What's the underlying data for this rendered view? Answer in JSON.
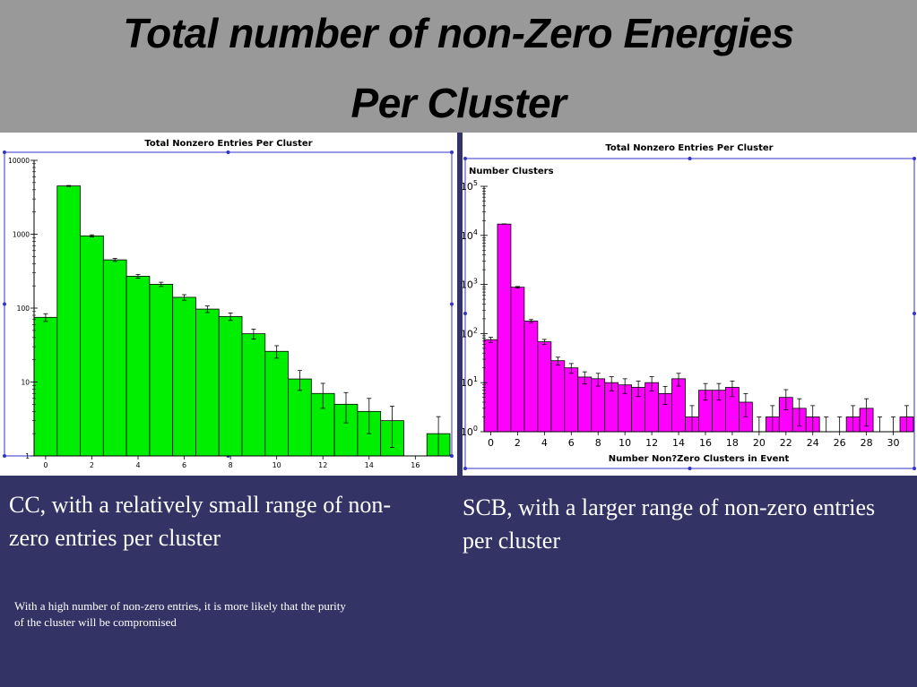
{
  "slide": {
    "title_line1": "Total number of non-Zero Energies",
    "title_line2": "Per Cluster",
    "caption_cc": "CC, with a relatively small range of non-zero entries per cluster",
    "caption_scb": "SCB, with a larger range of non-zero entries per cluster",
    "note": "With a high number of non-zero entries, it is more likely that the purity of the cluster will be compromised",
    "colors": {
      "background": "#333366",
      "title_band": "#999999",
      "cc_bars": "#00ee00",
      "scb_bars": "#ff00ff",
      "frame": "#3333cc"
    }
  },
  "chart_data": [
    {
      "type": "bar",
      "title": "Total Nonzero Entries Per Cluster",
      "ylabel": "",
      "xlabel": "",
      "yscale": "log",
      "ylim": [
        1,
        10000
      ],
      "xlim": [
        -0.5,
        17.5
      ],
      "bin_width": 1,
      "x_ticks": [
        "0",
        "2",
        "4",
        "6",
        "8",
        "10",
        "12",
        "14",
        "16"
      ],
      "x_tick_values": [
        0,
        2,
        4,
        6,
        8,
        10,
        12,
        14,
        16
      ],
      "y_ticks": [
        "1",
        "10",
        "100",
        "1000",
        "10000"
      ],
      "y_tick_values": [
        1,
        10,
        100,
        1000,
        10000
      ],
      "bars": [
        {
          "x": 0,
          "value": 75,
          "err": 9
        },
        {
          "x": 1,
          "value": 4500,
          "err": 67
        },
        {
          "x": 2,
          "value": 950,
          "err": 31
        },
        {
          "x": 3,
          "value": 450,
          "err": 21
        },
        {
          "x": 4,
          "value": 270,
          "err": 16
        },
        {
          "x": 5,
          "value": 210,
          "err": 14
        },
        {
          "x": 6,
          "value": 140,
          "err": 12
        },
        {
          "x": 7,
          "value": 97,
          "err": 10
        },
        {
          "x": 8,
          "value": 77,
          "err": 9
        },
        {
          "x": 9,
          "value": 45,
          "err": 7
        },
        {
          "x": 10,
          "value": 26,
          "err": 5
        },
        {
          "x": 11,
          "value": 11,
          "err": 3.3
        },
        {
          "x": 12,
          "value": 7,
          "err": 2.6
        },
        {
          "x": 13,
          "value": 5,
          "err": 2.2
        },
        {
          "x": 14,
          "value": 4,
          "err": 2
        },
        {
          "x": 15,
          "value": 3,
          "err": 1.7
        },
        {
          "x": 16,
          "value": 0,
          "err": 0
        },
        {
          "x": 17,
          "value": 2,
          "err": 1.4
        }
      ]
    },
    {
      "type": "bar",
      "title": "Total Nonzero Entries Per Cluster",
      "ylabel": "Number Clusters",
      "xlabel": "Number Non?Zero Clusters in Event",
      "yscale": "log",
      "ylim": [
        1,
        100000
      ],
      "xlim": [
        -0.5,
        31.5
      ],
      "bin_width": 1,
      "x_ticks": [
        "0",
        "2",
        "4",
        "6",
        "8",
        "10",
        "12",
        "14",
        "16",
        "18",
        "20",
        "22",
        "24",
        "26",
        "28",
        "30"
      ],
      "x_tick_values": [
        0,
        2,
        4,
        6,
        8,
        10,
        12,
        14,
        16,
        18,
        20,
        22,
        24,
        26,
        28,
        30
      ],
      "y_ticks": [
        "10^0",
        "10^1",
        "10^2",
        "10^3",
        "10^4",
        "10^5"
      ],
      "y_tick_values": [
        1,
        10,
        100,
        1000,
        10000,
        100000
      ],
      "bars": [
        {
          "x": 0,
          "value": 75,
          "err": 9
        },
        {
          "x": 1,
          "value": 17000,
          "err": 130
        },
        {
          "x": 2,
          "value": 880,
          "err": 30
        },
        {
          "x": 3,
          "value": 180,
          "err": 13
        },
        {
          "x": 4,
          "value": 68,
          "err": 8
        },
        {
          "x": 5,
          "value": 28,
          "err": 5
        },
        {
          "x": 6,
          "value": 20,
          "err": 4.5
        },
        {
          "x": 7,
          "value": 13,
          "err": 3.6
        },
        {
          "x": 8,
          "value": 12,
          "err": 3.5
        },
        {
          "x": 9,
          "value": 10,
          "err": 3.2
        },
        {
          "x": 10,
          "value": 9,
          "err": 3
        },
        {
          "x": 11,
          "value": 8,
          "err": 2.8
        },
        {
          "x": 12,
          "value": 10,
          "err": 3.2
        },
        {
          "x": 13,
          "value": 6,
          "err": 2.4
        },
        {
          "x": 14,
          "value": 12,
          "err": 3.5
        },
        {
          "x": 15,
          "value": 2,
          "err": 1.4
        },
        {
          "x": 16,
          "value": 7,
          "err": 2.6
        },
        {
          "x": 17,
          "value": 7,
          "err": 2.6
        },
        {
          "x": 18,
          "value": 8,
          "err": 2.8
        },
        {
          "x": 19,
          "value": 4,
          "err": 2
        },
        {
          "x": 20,
          "value": 1,
          "err": 1
        },
        {
          "x": 21,
          "value": 2,
          "err": 1.4
        },
        {
          "x": 22,
          "value": 5,
          "err": 2.2
        },
        {
          "x": 23,
          "value": 3,
          "err": 1.7
        },
        {
          "x": 24,
          "value": 2,
          "err": 1.4
        },
        {
          "x": 25,
          "value": 1,
          "err": 1
        },
        {
          "x": 26,
          "value": 1,
          "err": 1
        },
        {
          "x": 27,
          "value": 2,
          "err": 1.4
        },
        {
          "x": 28,
          "value": 3,
          "err": 1.7
        },
        {
          "x": 29,
          "value": 1,
          "err": 1
        },
        {
          "x": 30,
          "value": 1,
          "err": 1
        },
        {
          "x": 31,
          "value": 2,
          "err": 1.4
        }
      ]
    }
  ]
}
